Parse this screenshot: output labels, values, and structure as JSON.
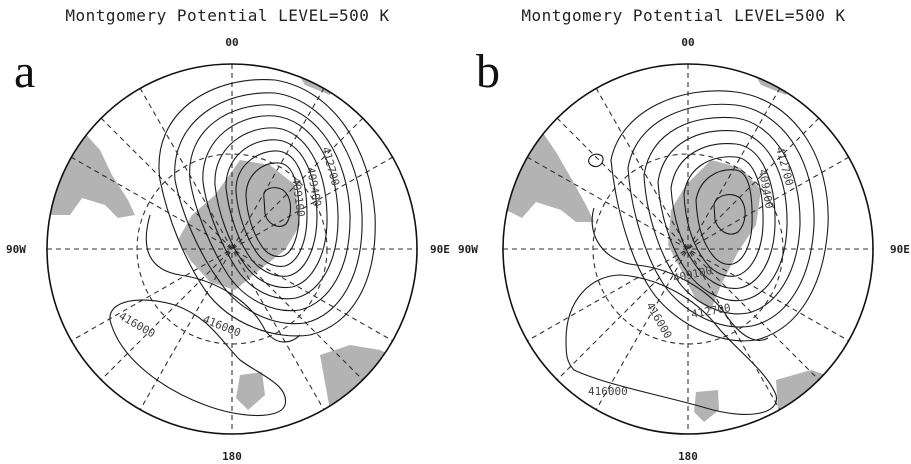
{
  "panels": [
    {
      "letter": "a",
      "title": "Montgomery Potential LEVEL=500 K",
      "lon_labels": {
        "top": "00",
        "left": "90W",
        "right": "90E",
        "bottom": "180"
      },
      "contour_labels": [
        "412700",
        "409400",
        "409100",
        "416000",
        "416000"
      ]
    },
    {
      "letter": "b",
      "title": "Montgomery Potential LEVEL=500 K",
      "lon_labels": {
        "top": "00",
        "left": "90W",
        "right": "90E",
        "bottom": "180"
      },
      "contour_labels": [
        "412700",
        "409400",
        "409100",
        "412700",
        "416000",
        "416000"
      ]
    }
  ],
  "colors": {
    "land": "#b3b3b3",
    "contour": "#1a1a1a",
    "grid": "#333333"
  }
}
